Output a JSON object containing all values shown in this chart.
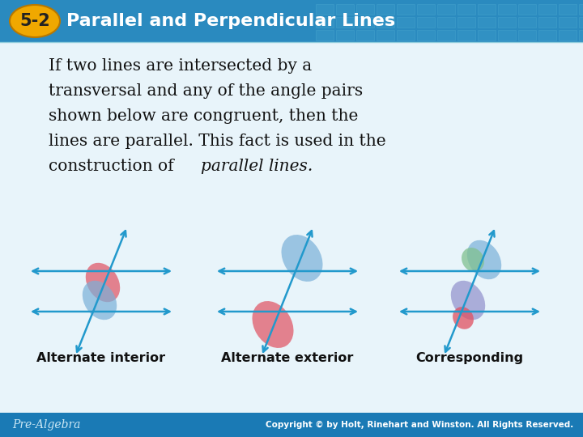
{
  "title_num": "5-2",
  "title_text": "Parallel and Perpendicular Lines",
  "header_bg": "#2a8abf",
  "header_bg2": "#1a7aaa",
  "badge_color": "#f0a800",
  "badge_text_color": "#ffffff",
  "title_text_color": "#ffffff",
  "body_text_color": "#111111",
  "footer_bg": "#1a7ab5",
  "footer_text_color": "#cce8f5",
  "footer_left": "Pre-Algebra",
  "footer_right": "Copyright © by Holt, Rinehart and Winston. All Rights Reserved.",
  "bg_color": "#e8f4fa",
  "diagram_labels": [
    "Alternate interior",
    "Alternate exterior",
    "Corresponding"
  ],
  "line_color": "#2299cc",
  "color_red": "#e05060",
  "color_blue": "#7ab0d8",
  "color_blue2": "#80b8e0",
  "color_green": "#80c090",
  "color_purple": "#9090cc"
}
